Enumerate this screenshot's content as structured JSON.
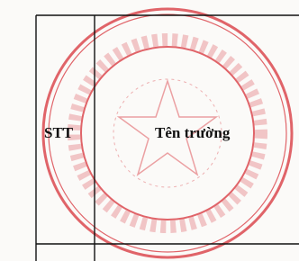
{
  "table": {
    "header": [
      "STT",
      "Tên trường"
    ]
  }
}
